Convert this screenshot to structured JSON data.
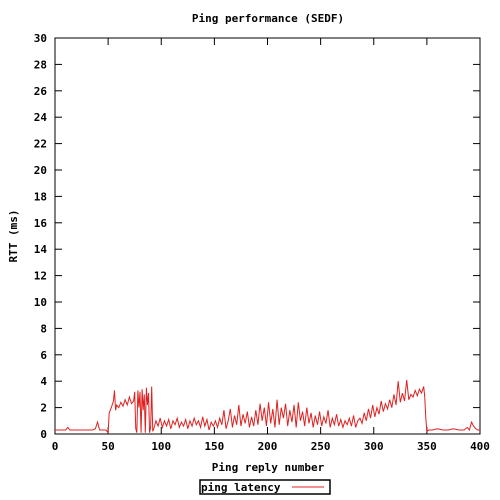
{
  "chart_data": {
    "type": "line",
    "title": "Ping performance (SEDF)",
    "xlabel": "Ping reply number",
    "ylabel": "RTT (ms)",
    "xlim": [
      0,
      400
    ],
    "ylim": [
      0,
      30
    ],
    "xticks": [
      0,
      50,
      100,
      150,
      200,
      250,
      300,
      350,
      400
    ],
    "yticks": [
      0,
      2,
      4,
      6,
      8,
      10,
      12,
      14,
      16,
      18,
      20,
      22,
      24,
      26,
      28,
      30
    ],
    "grid": false,
    "legend": "bottom-center",
    "series": [
      {
        "name": "ping latency",
        "color": "#e02020",
        "points": [
          [
            0,
            0.3
          ],
          [
            5,
            0.3
          ],
          [
            10,
            0.3
          ],
          [
            12,
            0.5
          ],
          [
            14,
            0.3
          ],
          [
            20,
            0.3
          ],
          [
            25,
            0.3
          ],
          [
            30,
            0.3
          ],
          [
            35,
            0.3
          ],
          [
            38,
            0.4
          ],
          [
            40,
            0.9
          ],
          [
            42,
            0.3
          ],
          [
            45,
            0.3
          ],
          [
            48,
            0.3
          ],
          [
            50,
            0.1
          ],
          [
            51,
            1.6
          ],
          [
            53,
            2.0
          ],
          [
            55,
            2.5
          ],
          [
            56,
            3.3
          ],
          [
            57,
            1.8
          ],
          [
            58,
            2.2
          ],
          [
            60,
            2.0
          ],
          [
            62,
            2.4
          ],
          [
            64,
            2.1
          ],
          [
            66,
            2.6
          ],
          [
            68,
            2.2
          ],
          [
            70,
            2.8
          ],
          [
            72,
            2.3
          ],
          [
            74,
            2.5
          ],
          [
            75,
            3.2
          ],
          [
            76,
            0.4
          ],
          [
            77,
            0.1
          ],
          [
            78,
            3.3
          ],
          [
            79,
            2.0
          ],
          [
            80,
            3.2
          ],
          [
            81,
            0.1
          ],
          [
            82,
            3.4
          ],
          [
            83,
            1.8
          ],
          [
            84,
            3.0
          ],
          [
            85,
            0.1
          ],
          [
            86,
            3.5
          ],
          [
            87,
            2.2
          ],
          [
            88,
            3.1
          ],
          [
            89,
            0.1
          ],
          [
            90,
            0.5
          ],
          [
            91,
            3.6
          ],
          [
            92,
            0.2
          ],
          [
            93,
            0.4
          ],
          [
            95,
            1.0
          ],
          [
            97,
            0.6
          ],
          [
            99,
            1.2
          ],
          [
            101,
            0.5
          ],
          [
            103,
            1.0
          ],
          [
            105,
            0.6
          ],
          [
            107,
            1.1
          ],
          [
            109,
            0.4
          ],
          [
            111,
            1.0
          ],
          [
            113,
            0.7
          ],
          [
            115,
            1.2
          ],
          [
            117,
            0.5
          ],
          [
            119,
            0.9
          ],
          [
            121,
            0.6
          ],
          [
            123,
            1.1
          ],
          [
            125,
            0.4
          ],
          [
            127,
            1.0
          ],
          [
            129,
            0.6
          ],
          [
            131,
            1.2
          ],
          [
            133,
            0.7
          ],
          [
            135,
            1.0
          ],
          [
            137,
            0.5
          ],
          [
            139,
            1.3
          ],
          [
            141,
            0.6
          ],
          [
            143,
            1.1
          ],
          [
            145,
            0.3
          ],
          [
            147,
            0.9
          ],
          [
            149,
            0.6
          ],
          [
            151,
            1.0
          ],
          [
            153,
            0.5
          ],
          [
            155,
            1.2
          ],
          [
            157,
            0.7
          ],
          [
            159,
            1.8
          ],
          [
            161,
            0.4
          ],
          [
            163,
            1.0
          ],
          [
            165,
            1.9
          ],
          [
            167,
            0.5
          ],
          [
            169,
            1.4
          ],
          [
            171,
            0.7
          ],
          [
            173,
            2.2
          ],
          [
            175,
            0.6
          ],
          [
            177,
            1.5
          ],
          [
            179,
            0.8
          ],
          [
            181,
            1.7
          ],
          [
            183,
            0.5
          ],
          [
            185,
            1.3
          ],
          [
            187,
            0.6
          ],
          [
            189,
            1.8
          ],
          [
            191,
            0.7
          ],
          [
            193,
            2.3
          ],
          [
            195,
            1.0
          ],
          [
            197,
            2.0
          ],
          [
            199,
            0.6
          ],
          [
            201,
            2.4
          ],
          [
            203,
            0.8
          ],
          [
            205,
            1.9
          ],
          [
            207,
            0.5
          ],
          [
            209,
            2.6
          ],
          [
            211,
            0.7
          ],
          [
            213,
            2.0
          ],
          [
            215,
            1.2
          ],
          [
            217,
            2.3
          ],
          [
            219,
            0.6
          ],
          [
            221,
            1.8
          ],
          [
            223,
            0.9
          ],
          [
            225,
            2.2
          ],
          [
            227,
            0.5
          ],
          [
            229,
            2.4
          ],
          [
            231,
            1.0
          ],
          [
            233,
            1.7
          ],
          [
            235,
            0.6
          ],
          [
            237,
            2.0
          ],
          [
            239,
            0.8
          ],
          [
            241,
            1.6
          ],
          [
            243,
            0.5
          ],
          [
            245,
            1.4
          ],
          [
            247,
            0.7
          ],
          [
            249,
            1.7
          ],
          [
            251,
            0.6
          ],
          [
            253,
            1.3
          ],
          [
            255,
            0.8
          ],
          [
            257,
            1.8
          ],
          [
            259,
            0.5
          ],
          [
            261,
            1.2
          ],
          [
            263,
            0.7
          ],
          [
            265,
            1.5
          ],
          [
            267,
            0.6
          ],
          [
            269,
            1.1
          ],
          [
            271,
            0.5
          ],
          [
            273,
            1.0
          ],
          [
            275,
            0.7
          ],
          [
            277,
            1.2
          ],
          [
            279,
            0.6
          ],
          [
            281,
            1.4
          ],
          [
            283,
            0.5
          ],
          [
            285,
            1.0
          ],
          [
            287,
            1.2
          ],
          [
            289,
            0.8
          ],
          [
            291,
            1.6
          ],
          [
            293,
            1.0
          ],
          [
            295,
            1.9
          ],
          [
            297,
            1.2
          ],
          [
            299,
            2.2
          ],
          [
            301,
            1.3
          ],
          [
            303,
            2.0
          ],
          [
            305,
            1.5
          ],
          [
            307,
            2.5
          ],
          [
            309,
            1.7
          ],
          [
            311,
            2.3
          ],
          [
            313,
            1.9
          ],
          [
            315,
            2.6
          ],
          [
            317,
            2.0
          ],
          [
            319,
            3.0
          ],
          [
            321,
            2.2
          ],
          [
            323,
            4.0
          ],
          [
            325,
            2.4
          ],
          [
            327,
            3.1
          ],
          [
            329,
            2.5
          ],
          [
            331,
            4.1
          ],
          [
            333,
            2.6
          ],
          [
            335,
            3.0
          ],
          [
            337,
            2.8
          ],
          [
            339,
            3.3
          ],
          [
            341,
            2.9
          ],
          [
            343,
            3.4
          ],
          [
            345,
            3.1
          ],
          [
            347,
            3.6
          ],
          [
            348,
            2.8
          ],
          [
            349,
            1.2
          ],
          [
            350,
            0.2
          ],
          [
            352,
            0.3
          ],
          [
            355,
            0.3
          ],
          [
            360,
            0.4
          ],
          [
            365,
            0.3
          ],
          [
            370,
            0.3
          ],
          [
            375,
            0.4
          ],
          [
            380,
            0.3
          ],
          [
            385,
            0.3
          ],
          [
            388,
            0.5
          ],
          [
            390,
            0.3
          ],
          [
            392,
            0.9
          ],
          [
            394,
            0.6
          ],
          [
            396,
            0.4
          ],
          [
            398,
            0.3
          ],
          [
            400,
            0.3
          ]
        ]
      }
    ]
  }
}
